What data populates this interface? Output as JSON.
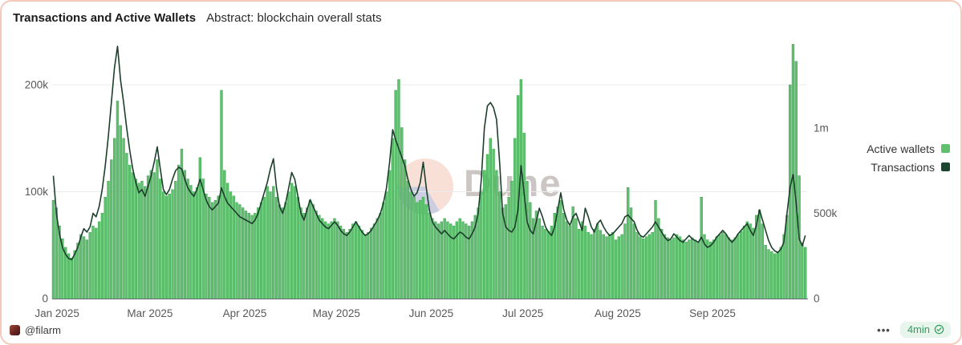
{
  "header": {
    "title": "Transactions and Active Wallets",
    "subtitle": "Abstract: blockchain overall stats"
  },
  "legend": [
    {
      "label": "Active wallets",
      "color": "#5fc16d"
    },
    {
      "label": "Transactions",
      "color": "#1c4632"
    }
  ],
  "watermark": {
    "text": "Dune"
  },
  "footer": {
    "author": "@filarm",
    "menu": "•••",
    "refresh_badge": {
      "label": "4min",
      "icon": "verified-check"
    }
  },
  "colors": {
    "bar_fill": "#5fc16d",
    "bar_stroke": "#3aa251",
    "line": "#1c3f2c",
    "grid": "#ebebeb",
    "axis_text": "#58585a",
    "axis_line": "#6e7079",
    "card_border": "#f6c9ba",
    "badge_bg": "#e8f5ec",
    "badge_text": "#2e9e5b"
  },
  "chart_data": {
    "type": "bar",
    "subtype": "bar+line dual-axis, daily",
    "title": "Transactions and Active Wallets",
    "x_axis": {
      "frequency": "daily",
      "range_estimate": [
        "2025-01-28",
        "2025-10-01"
      ],
      "tick_labels": [
        "Jan 2025",
        "Mar 2025",
        "Apr 2025",
        "May 2025",
        "Jun 2025",
        "Jul 2025",
        "Aug 2025",
        "Sep 2025"
      ]
    },
    "y_axis_left": {
      "series": "Active wallets",
      "tick_labels": [
        "0",
        "100k",
        "200k"
      ],
      "tick_values_k": [
        0,
        100,
        200
      ],
      "range_k": [
        0,
        245
      ],
      "grid": true
    },
    "y_axis_right": {
      "series": "Transactions",
      "tick_labels": [
        "0",
        "500k",
        "1m"
      ],
      "tick_values_k": [
        0,
        500,
        1000
      ],
      "range_k": [
        0,
        1545
      ],
      "grid": false
    },
    "legend_position": "right",
    "series": [
      {
        "name": "Active wallets",
        "type": "bar",
        "axis": "left",
        "unit": "thousands",
        "color": "#5fc16d",
        "values_k": [
          92,
          85,
          68,
          56,
          48,
          42,
          38,
          45,
          52,
          60,
          58,
          55,
          62,
          68,
          66,
          72,
          80,
          95,
          110,
          130,
          150,
          185,
          162,
          150,
          136,
          125,
          118,
          112,
          108,
          110,
          105,
          115,
          120,
          118,
          130,
          112,
          100,
          96,
          98,
          102,
          110,
          125,
          140,
          120,
          112,
          106,
          100,
          104,
          132,
          112,
          98,
          95,
          90,
          92,
          96,
          195,
          120,
          108,
          100,
          96,
          90,
          88,
          85,
          82,
          80,
          78,
          80,
          85,
          90,
          95,
          105,
          100,
          105,
          95,
          88,
          85,
          90,
          100,
          108,
          105,
          95,
          85,
          80,
          85,
          92,
          88,
          82,
          78,
          75,
          72,
          70,
          72,
          75,
          72,
          68,
          65,
          62,
          65,
          70,
          72,
          68,
          64,
          60,
          62,
          66,
          70,
          75,
          80,
          90,
          100,
          120,
          150,
          195,
          205,
          160,
          130,
          110,
          100,
          95,
          90,
          92,
          95,
          88,
          80,
          75,
          72,
          70,
          72,
          75,
          72,
          70,
          68,
          72,
          75,
          72,
          70,
          68,
          72,
          78,
          85,
          100,
          120,
          135,
          150,
          140,
          120,
          100,
          85,
          88,
          95,
          110,
          150,
          190,
          205,
          155,
          110,
          90,
          75,
          82,
          75,
          68,
          65,
          63,
          68,
          80,
          86,
          92,
          80,
          72,
          68,
          86,
          75,
          65,
          72,
          68,
          62,
          60,
          65,
          70,
          64,
          60,
          58,
          60,
          62,
          55,
          58,
          60,
          70,
          104,
          85,
          70,
          62,
          58,
          56,
          58,
          60,
          62,
          92,
          75,
          65,
          60,
          57,
          55,
          57,
          60,
          58,
          55,
          53,
          55,
          57,
          55,
          53,
          95,
          60,
          55,
          53,
          55,
          58,
          60,
          62,
          60,
          57,
          55,
          57,
          60,
          63,
          68,
          72,
          70,
          66,
          78,
          83,
          70,
          50,
          46,
          44,
          42,
          44,
          48,
          60,
          78,
          200,
          238,
          222,
          115,
          52,
          48
        ]
      },
      {
        "name": "Transactions",
        "type": "line",
        "axis": "right",
        "unit": "thousands",
        "color": "#1c3f2c",
        "values_k": [
          720,
          500,
          380,
          300,
          260,
          235,
          228,
          260,
          300,
          360,
          410,
          390,
          420,
          500,
          480,
          540,
          640,
          780,
          950,
          1150,
          1350,
          1480,
          1280,
          1150,
          1000,
          870,
          760,
          680,
          620,
          640,
          600,
          660,
          720,
          800,
          890,
          760,
          640,
          610,
          640,
          700,
          750,
          770,
          760,
          700,
          650,
          620,
          600,
          640,
          700,
          640,
          580,
          540,
          520,
          540,
          560,
          650,
          600,
          560,
          540,
          520,
          500,
          480,
          470,
          460,
          450,
          440,
          460,
          500,
          560,
          620,
          680,
          760,
          820,
          650,
          540,
          500,
          560,
          650,
          740,
          700,
          600,
          500,
          460,
          520,
          580,
          540,
          500,
          460,
          440,
          420,
          410,
          430,
          450,
          430,
          400,
          380,
          370,
          390,
          420,
          450,
          420,
          390,
          370,
          380,
          400,
          430,
          460,
          500,
          560,
          650,
          800,
          990,
          930,
          880,
          830,
          780,
          700,
          640,
          600,
          620,
          680,
          800,
          650,
          520,
          450,
          420,
          400,
          380,
          400,
          380,
          360,
          350,
          370,
          390,
          380,
          360,
          350,
          380,
          420,
          500,
          700,
          1000,
          1130,
          1150,
          1120,
          1050,
          800,
          500,
          420,
          400,
          390,
          420,
          520,
          780,
          620,
          450,
          400,
          380,
          450,
          530,
          480,
          420,
          390,
          370,
          420,
          520,
          620,
          520,
          460,
          430,
          480,
          500,
          450,
          400,
          530,
          480,
          420,
          390,
          440,
          460,
          420,
          390,
          370,
          380,
          400,
          420,
          440,
          480,
          490,
          470,
          450,
          400,
          370,
          360,
          380,
          400,
          420,
          450,
          420,
          390,
          360,
          340,
          350,
          380,
          360,
          340,
          330,
          350,
          370,
          350,
          340,
          330,
          360,
          320,
          300,
          310,
          330,
          360,
          380,
          400,
          380,
          350,
          330,
          350,
          380,
          400,
          420,
          440,
          400,
          370,
          430,
          520,
          460,
          400,
          340,
          300,
          280,
          270,
          290,
          330,
          500,
          650,
          727,
          560,
          350,
          310,
          370
        ]
      }
    ]
  }
}
